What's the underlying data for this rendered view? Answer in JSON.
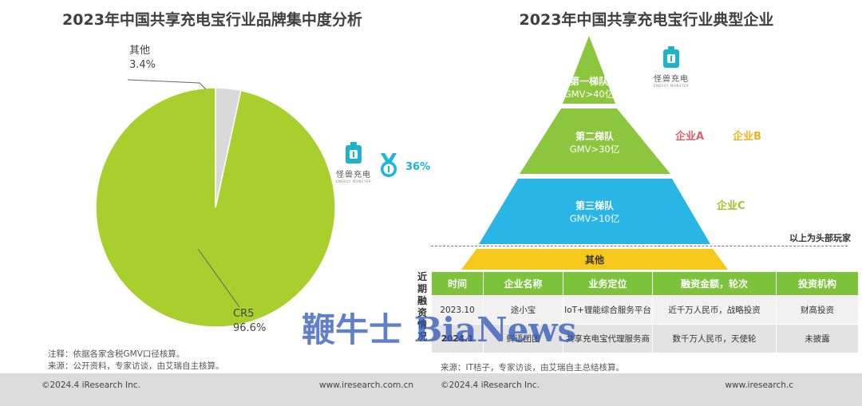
{
  "left": {
    "title": "2023年中国共享充电宝行业品牌集中度分析",
    "labels": {
      "other_name": "其他",
      "other_value": "3.4%",
      "cr5_name": "CR5",
      "cr5_value": "96.6%"
    },
    "brand": {
      "name": "怪兽充电",
      "sub": "ENERGY MONSTER",
      "share": "36%"
    },
    "notes": [
      "注释：依据各家含税GMV口径核算。",
      "来源：公开资料，专家访谈，由艾瑞自主核算。"
    ],
    "footer": {
      "copyright": "©2024.4 iResearch Inc.",
      "url": "www.iresearch.com.cn"
    }
  },
  "chart_data": {
    "type": "pie",
    "title": "2023年中国共享充电宝行业品牌集中度分析",
    "slices": [
      {
        "label": "CR5",
        "value": 96.6,
        "color": "#a8cf2d"
      },
      {
        "label": "其他",
        "value": 3.4,
        "color": "#d9d9d9"
      }
    ]
  },
  "right": {
    "title": "2023年中国共享充电宝行业典型企业",
    "tiers": [
      {
        "name": "第一梯队",
        "gmv": "GMV>40亿",
        "color": "#8cc63e"
      },
      {
        "name": "第二梯队",
        "gmv": "GMV>30亿",
        "color": "#8cc63e"
      },
      {
        "name": "第三梯队",
        "gmv": "GMV>10亿",
        "color": "#29b6e6"
      },
      {
        "name": "其他",
        "gmv": "",
        "color": "#f7c81c"
      }
    ],
    "brand": {
      "name": "怪兽充电",
      "sub": "ENERGY MONSTER"
    },
    "companies": {
      "a": {
        "label": "企业A",
        "color": "#e85b6a"
      },
      "b": {
        "label": "企业B",
        "color": "#f0b21a"
      },
      "c": {
        "label": "企业C",
        "color": "#a3c12a"
      }
    },
    "head_label": "以上为头部玩家",
    "table": {
      "side_label": "近期融资情况",
      "headers": [
        "时间",
        "企业名称",
        "业务定位",
        "融资金额，轮次",
        "投资机构"
      ],
      "rows": [
        [
          "2023.10",
          "途小宝",
          "IoT+锂能综合服务平台",
          "近千万人民币，战略投资",
          "财高投资"
        ],
        [
          "2024.1",
          "鲜语团团",
          "共享充电宝代理服务商",
          "数千万人民币，天使轮",
          "未披露"
        ]
      ]
    },
    "source": "来源：IT桔子，专家访谈，由艾瑞自主总结核算。",
    "footer": {
      "copyright": "©2024.4 iResearch Inc.",
      "url": "www.iresearch.c"
    }
  },
  "watermark": "鞭牛士 BiaNews"
}
